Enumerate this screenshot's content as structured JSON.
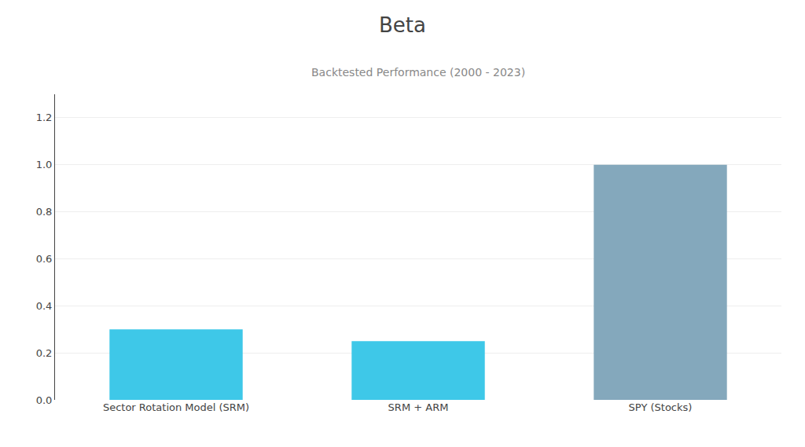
{
  "chart_data": {
    "type": "bar",
    "title": "Beta",
    "subtitle": "Backtested Performance (2000 - 2023)",
    "categories": [
      "Sector Rotation Model (SRM)",
      "SRM + ARM",
      "SPY (Stocks)"
    ],
    "values": [
      0.3,
      0.25,
      1.0
    ],
    "colors": [
      "#3EC8E8",
      "#3EC8E8",
      "#84A8BC"
    ],
    "ylim": [
      0,
      1.3
    ],
    "yticks": [
      {
        "value": 0.0,
        "label": "0.0"
      },
      0.2,
      0.4,
      0.6,
      0.8,
      {
        "value": 1.0,
        "label": "1.0"
      },
      1.2
    ],
    "grid": true
  }
}
